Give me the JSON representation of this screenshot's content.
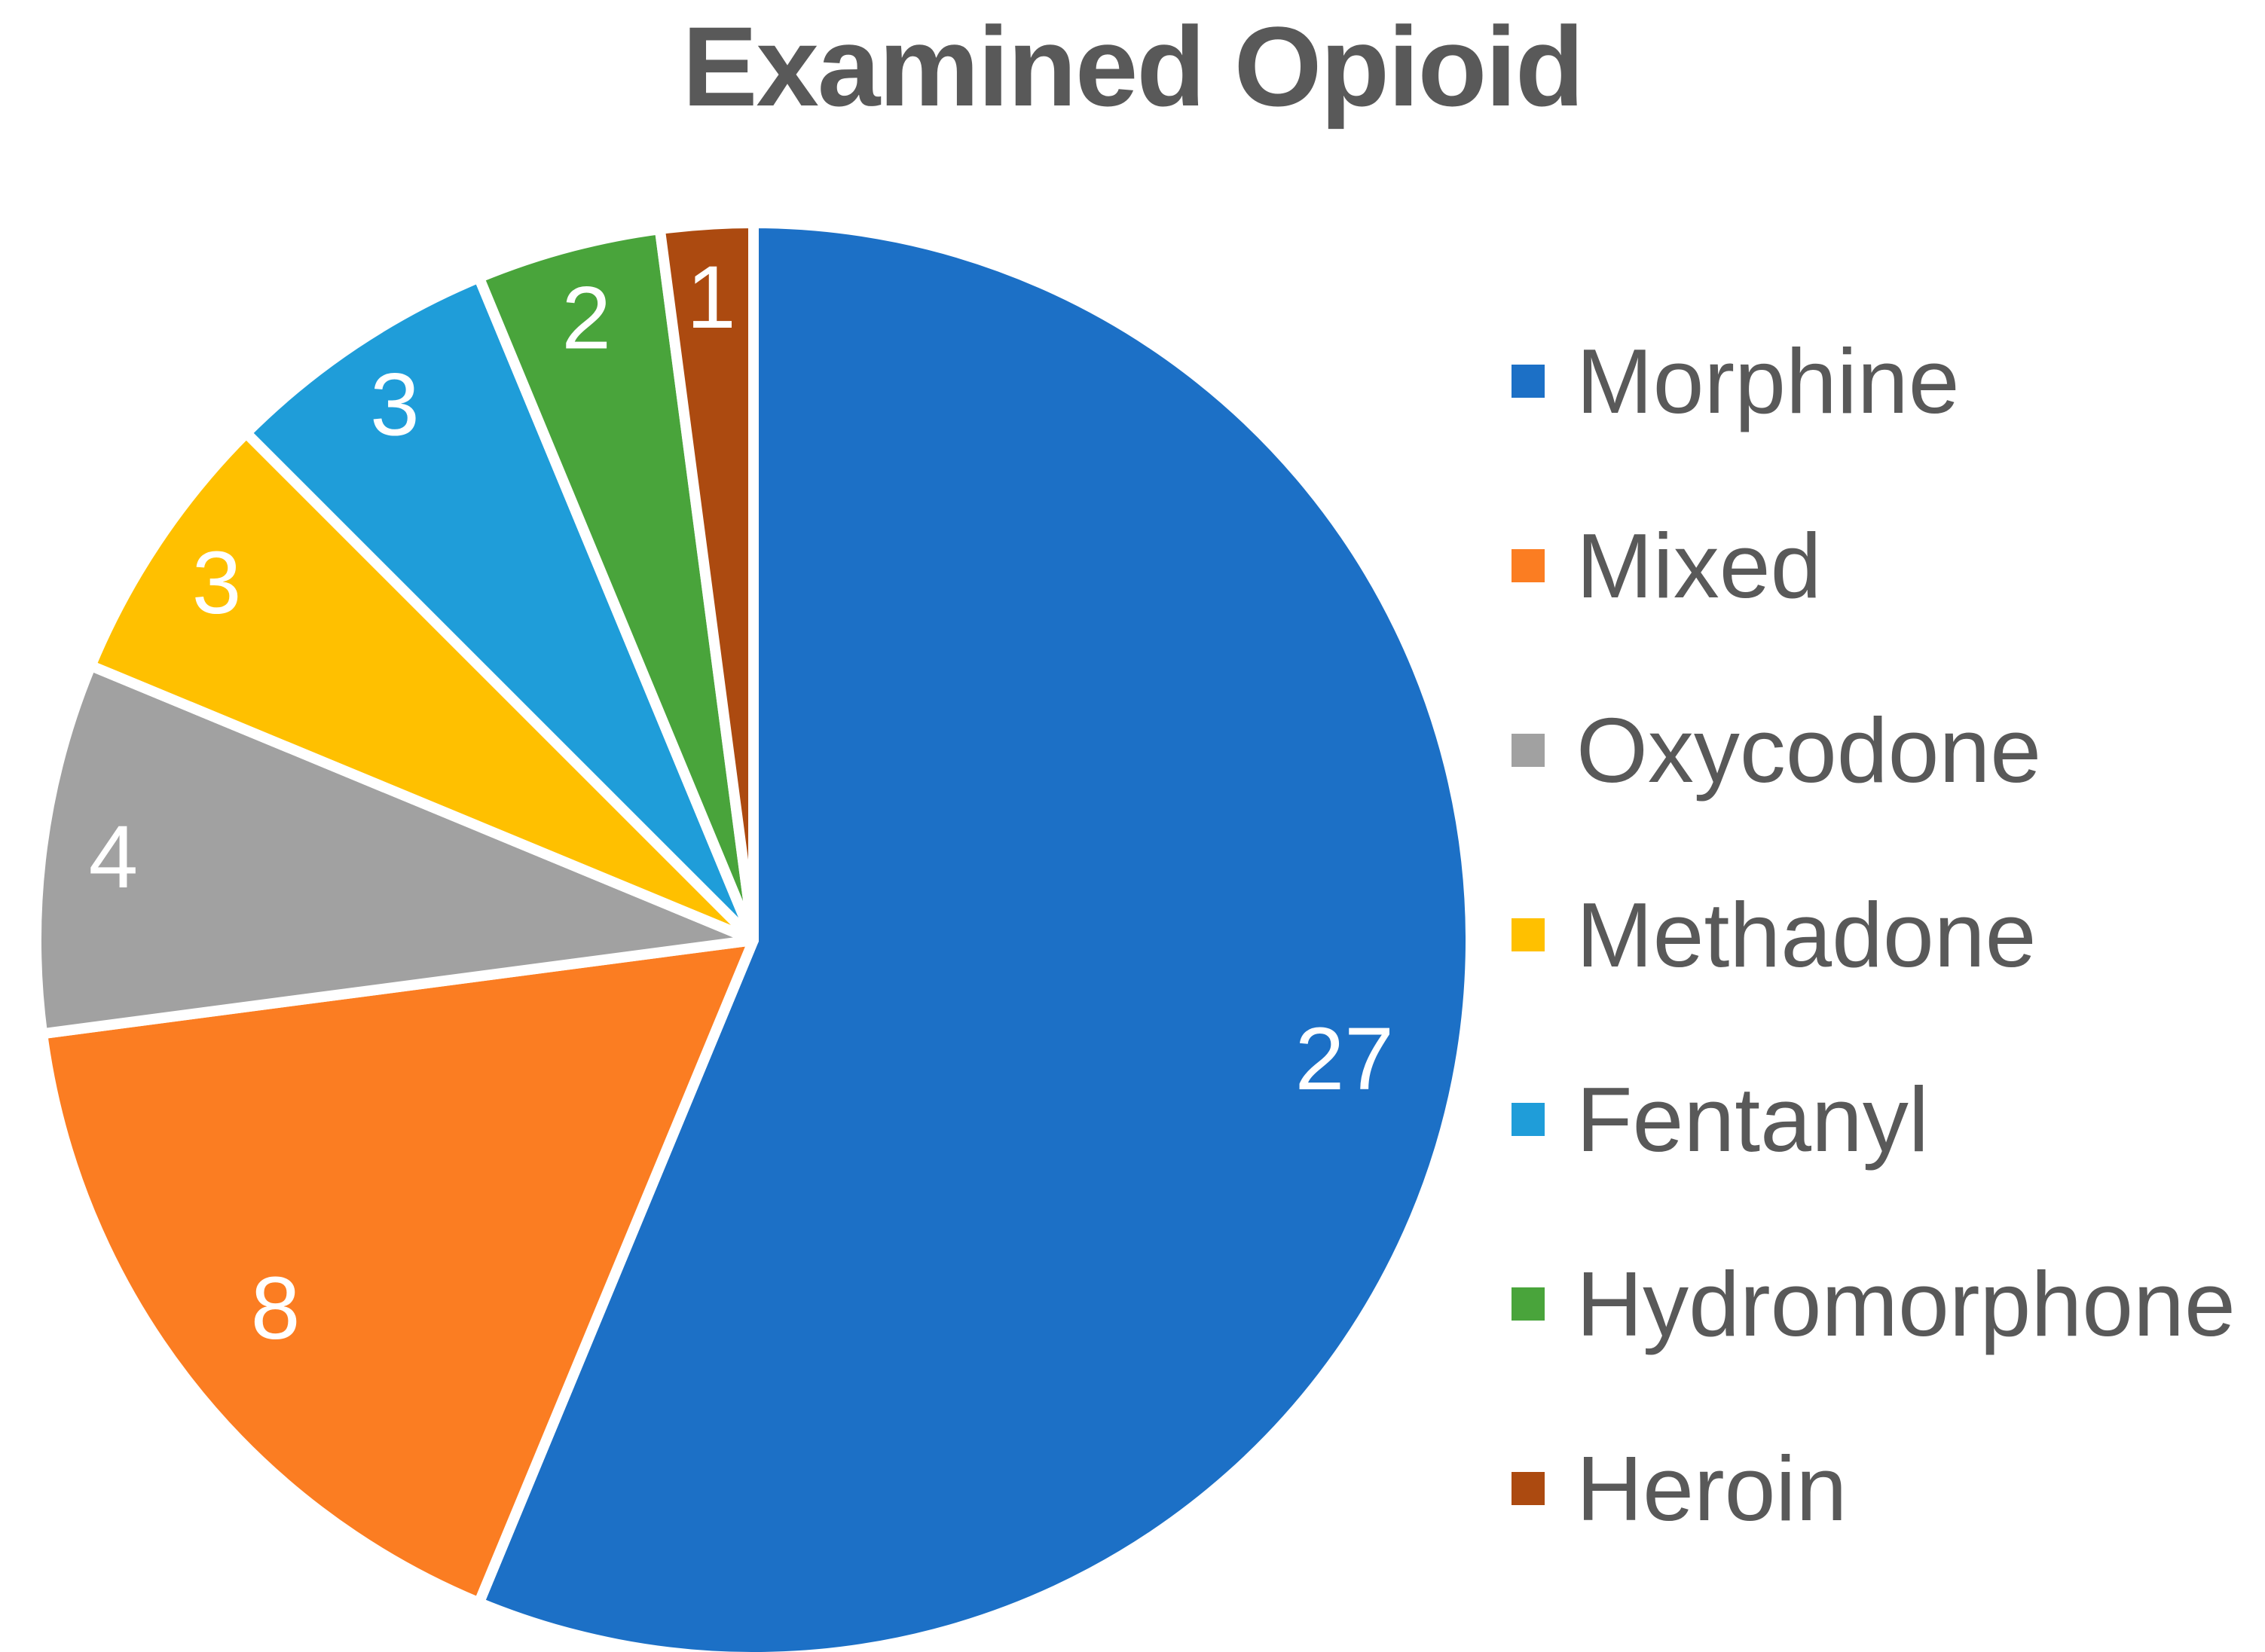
{
  "chart_data": {
    "type": "pie",
    "title": "Examined Opioid",
    "categories": [
      "Morphine",
      "Mixed",
      "Oxycodone",
      "Methadone",
      "Fentanyl",
      "Hydromorphone",
      "Heroin"
    ],
    "values": [
      27,
      8,
      4,
      3,
      3,
      2,
      1
    ],
    "data_labels": [
      "27",
      "8",
      "4",
      "3",
      "3",
      "2",
      "1"
    ],
    "colors": [
      "#1C70C6",
      "#FB7D22",
      "#A1A1A1",
      "#FFC000",
      "#1F9DD9",
      "#49A43B",
      "#AC4A10"
    ],
    "start_angle_deg": 0,
    "direction": "clockwise",
    "legend_position": "right",
    "slice_border_color": "#FFFFFF",
    "label_color": "#FFFFFF",
    "title_color": "#595959",
    "legend_text_color": "#595959",
    "background_color": "#FFFFFF"
  }
}
